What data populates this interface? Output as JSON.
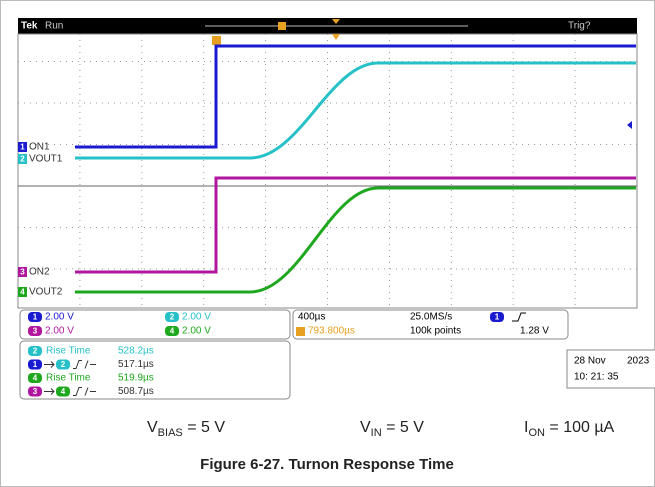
{
  "header": {
    "brand": "Tek",
    "status": "Run",
    "trigger_status": "Trig?"
  },
  "channels": [
    {
      "number": "1",
      "label": "ON1",
      "scale": "2.00 V",
      "color": "#1a1ad0"
    },
    {
      "number": "2",
      "label": "VOUT1",
      "scale": "2.00 V",
      "color": "#25c0c8"
    },
    {
      "number": "3",
      "label": "ON2",
      "scale": "2.00 V",
      "color": "#b0169e"
    },
    {
      "number": "4",
      "label": "VOUT2",
      "scale": "2.00 V",
      "color": "#1ea81e"
    }
  ],
  "timebase": {
    "scale": "400µs",
    "sample_rate": "25.0MS/s",
    "trigger_source": "1",
    "position": "793.800µs",
    "record_length": "100k points",
    "trigger_level": "1.28 V"
  },
  "measurements": [
    {
      "source": "2",
      "name": "Rise Time",
      "value": "528.2µs"
    },
    {
      "source": "1",
      "target": "2",
      "value": "517.1µs"
    },
    {
      "source": "4",
      "name": "Rise Time",
      "value": "519.9µs"
    },
    {
      "source": "3",
      "target": "4",
      "value": "508.7µs"
    }
  ],
  "date": "28 Nov",
  "year": "2023",
  "time": "10: 21: 35",
  "conditions": [
    {
      "symbol": "V",
      "subscript": "BIAS",
      "value": " = 5 V"
    },
    {
      "symbol": "V",
      "subscript": "IN",
      "value": " = 5 V"
    },
    {
      "symbol": "I",
      "subscript": "ON",
      "value": " = 100 µA"
    }
  ],
  "caption": "Figure 6-27. Turnon Response Time"
}
